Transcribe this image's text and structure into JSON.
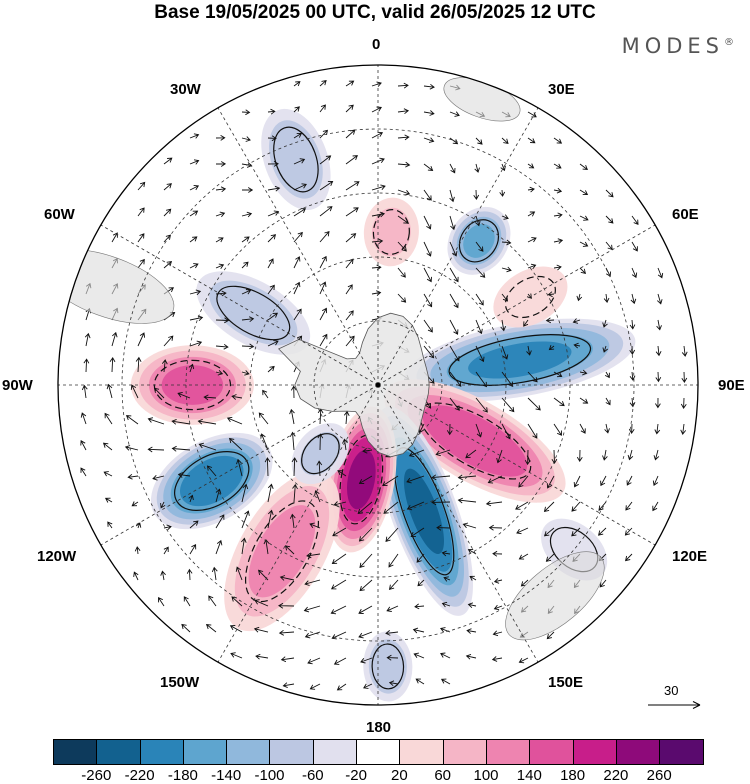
{
  "title": "Base 19/05/2025 00 UTC, valid 26/05/2025 12 UTC",
  "brand": "MODES",
  "brand_mark": "®",
  "longitude_labels": [
    "0",
    "30E",
    "60E",
    "90E",
    "120E",
    "150E",
    "180",
    "150W",
    "120W",
    "90W",
    "60W",
    "30W"
  ],
  "reference_vector": "30",
  "colorbar": {
    "ticks": [
      "-260",
      "-220",
      "-180",
      "-140",
      "-100",
      "-60",
      "-20",
      "20",
      "60",
      "100",
      "140",
      "180",
      "220",
      "260"
    ],
    "colors": [
      "#0d3a5c",
      "#12618f",
      "#2a84b8",
      "#5ea5cf",
      "#90b8dc",
      "#bcc7e2",
      "#e1e0ee",
      "#ffffff",
      "#f9d8d8",
      "#f5b5c6",
      "#ee84b0",
      "#e0529c",
      "#c81e8a",
      "#8e0a7a",
      "#5a0a6e"
    ]
  },
  "anomalies": [
    {
      "lon": 80,
      "r": 0.45,
      "v": -200,
      "sx": 0.32,
      "sy": 0.1
    },
    {
      "lon": 120,
      "r": 0.35,
      "v": 180,
      "sx": 0.28,
      "sy": 0.11
    },
    {
      "lon": 160,
      "r": 0.42,
      "v": -240,
      "sx": 0.3,
      "sy": 0.09
    },
    {
      "lon": -170,
      "r": 0.3,
      "v": 240,
      "sx": 0.2,
      "sy": 0.09
    },
    {
      "lon": -150,
      "r": 0.6,
      "v": 120,
      "sx": 0.25,
      "sy": 0.12
    },
    {
      "lon": -120,
      "r": 0.6,
      "v": -220,
      "sx": 0.18,
      "sy": 0.11
    },
    {
      "lon": -90,
      "r": 0.58,
      "v": 160,
      "sx": 0.17,
      "sy": 0.11
    },
    {
      "lon": -60,
      "r": 0.45,
      "v": -100,
      "sx": 0.18,
      "sy": 0.09
    },
    {
      "lon": -20,
      "r": 0.75,
      "v": -100,
      "sx": 0.15,
      "sy": 0.09
    },
    {
      "lon": 5,
      "r": 0.48,
      "v": 80,
      "sx": 0.1,
      "sy": 0.08
    },
    {
      "lon": 35,
      "r": 0.55,
      "v": -160,
      "sx": 0.1,
      "sy": 0.08
    },
    {
      "lon": 60,
      "r": 0.55,
      "v": 60,
      "sx": 0.12,
      "sy": 0.08
    },
    {
      "lon": -140,
      "r": 0.28,
      "v": -80,
      "sx": 0.1,
      "sy": 0.07
    },
    {
      "lon": 178,
      "r": 0.88,
      "v": -100,
      "sx": 0.1,
      "sy": 0.07
    },
    {
      "lon": 130,
      "r": 0.8,
      "v": -40,
      "sx": 0.12,
      "sy": 0.08
    }
  ]
}
